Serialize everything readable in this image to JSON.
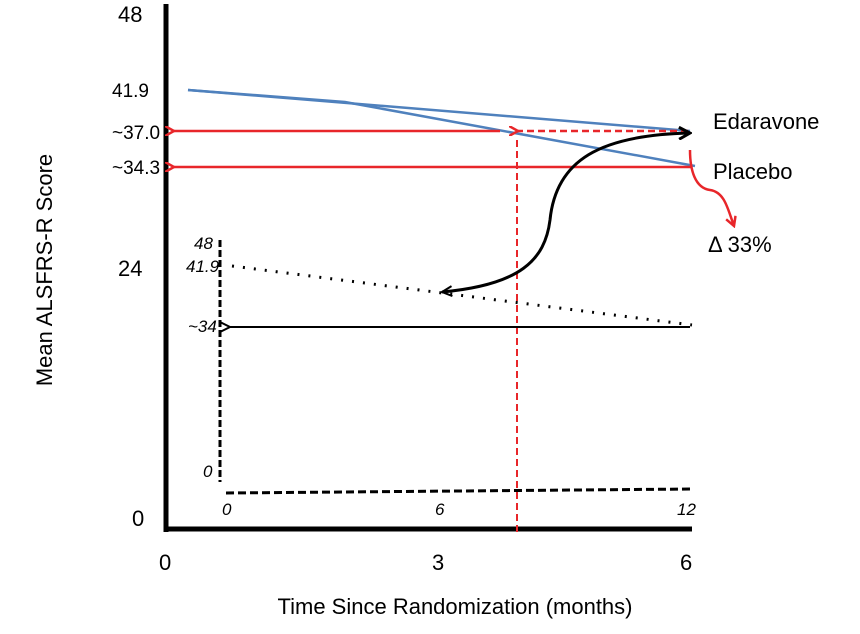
{
  "chart_data": {
    "type": "line",
    "xlabel": "Time Since Randomization (months)",
    "ylabel": "Mean ALSFRS-R Score",
    "xlim": [
      0,
      6
    ],
    "ylim": [
      0,
      48
    ],
    "x_ticks": [
      "0",
      "3",
      "6"
    ],
    "y_ticks": [
      "0",
      "24",
      "48"
    ],
    "y_annotations": [
      "41.9",
      "~37.0",
      "~34.3"
    ],
    "series": [
      {
        "name": "Edaravone",
        "x": [
          0,
          6
        ],
        "y": [
          41.9,
          37.0
        ],
        "color": "#4f81bd"
      },
      {
        "name": "Placebo",
        "x": [
          0,
          2,
          6
        ],
        "y": [
          41.9,
          40.7,
          34.3
        ],
        "color": "#4f81bd"
      }
    ],
    "annotation_delta": "Δ 33%",
    "accent_color": "#e8262a",
    "inset": {
      "xlim": [
        0,
        12
      ],
      "ylim": [
        0,
        48
      ],
      "x_ticks": [
        "0",
        "6",
        "12"
      ],
      "y_ticks": [
        "0",
        "41.9",
        "48"
      ],
      "y_annotation": "~34",
      "series": {
        "x": [
          0,
          12
        ],
        "y": [
          41.9,
          34
        ],
        "style": "dotted"
      }
    }
  }
}
